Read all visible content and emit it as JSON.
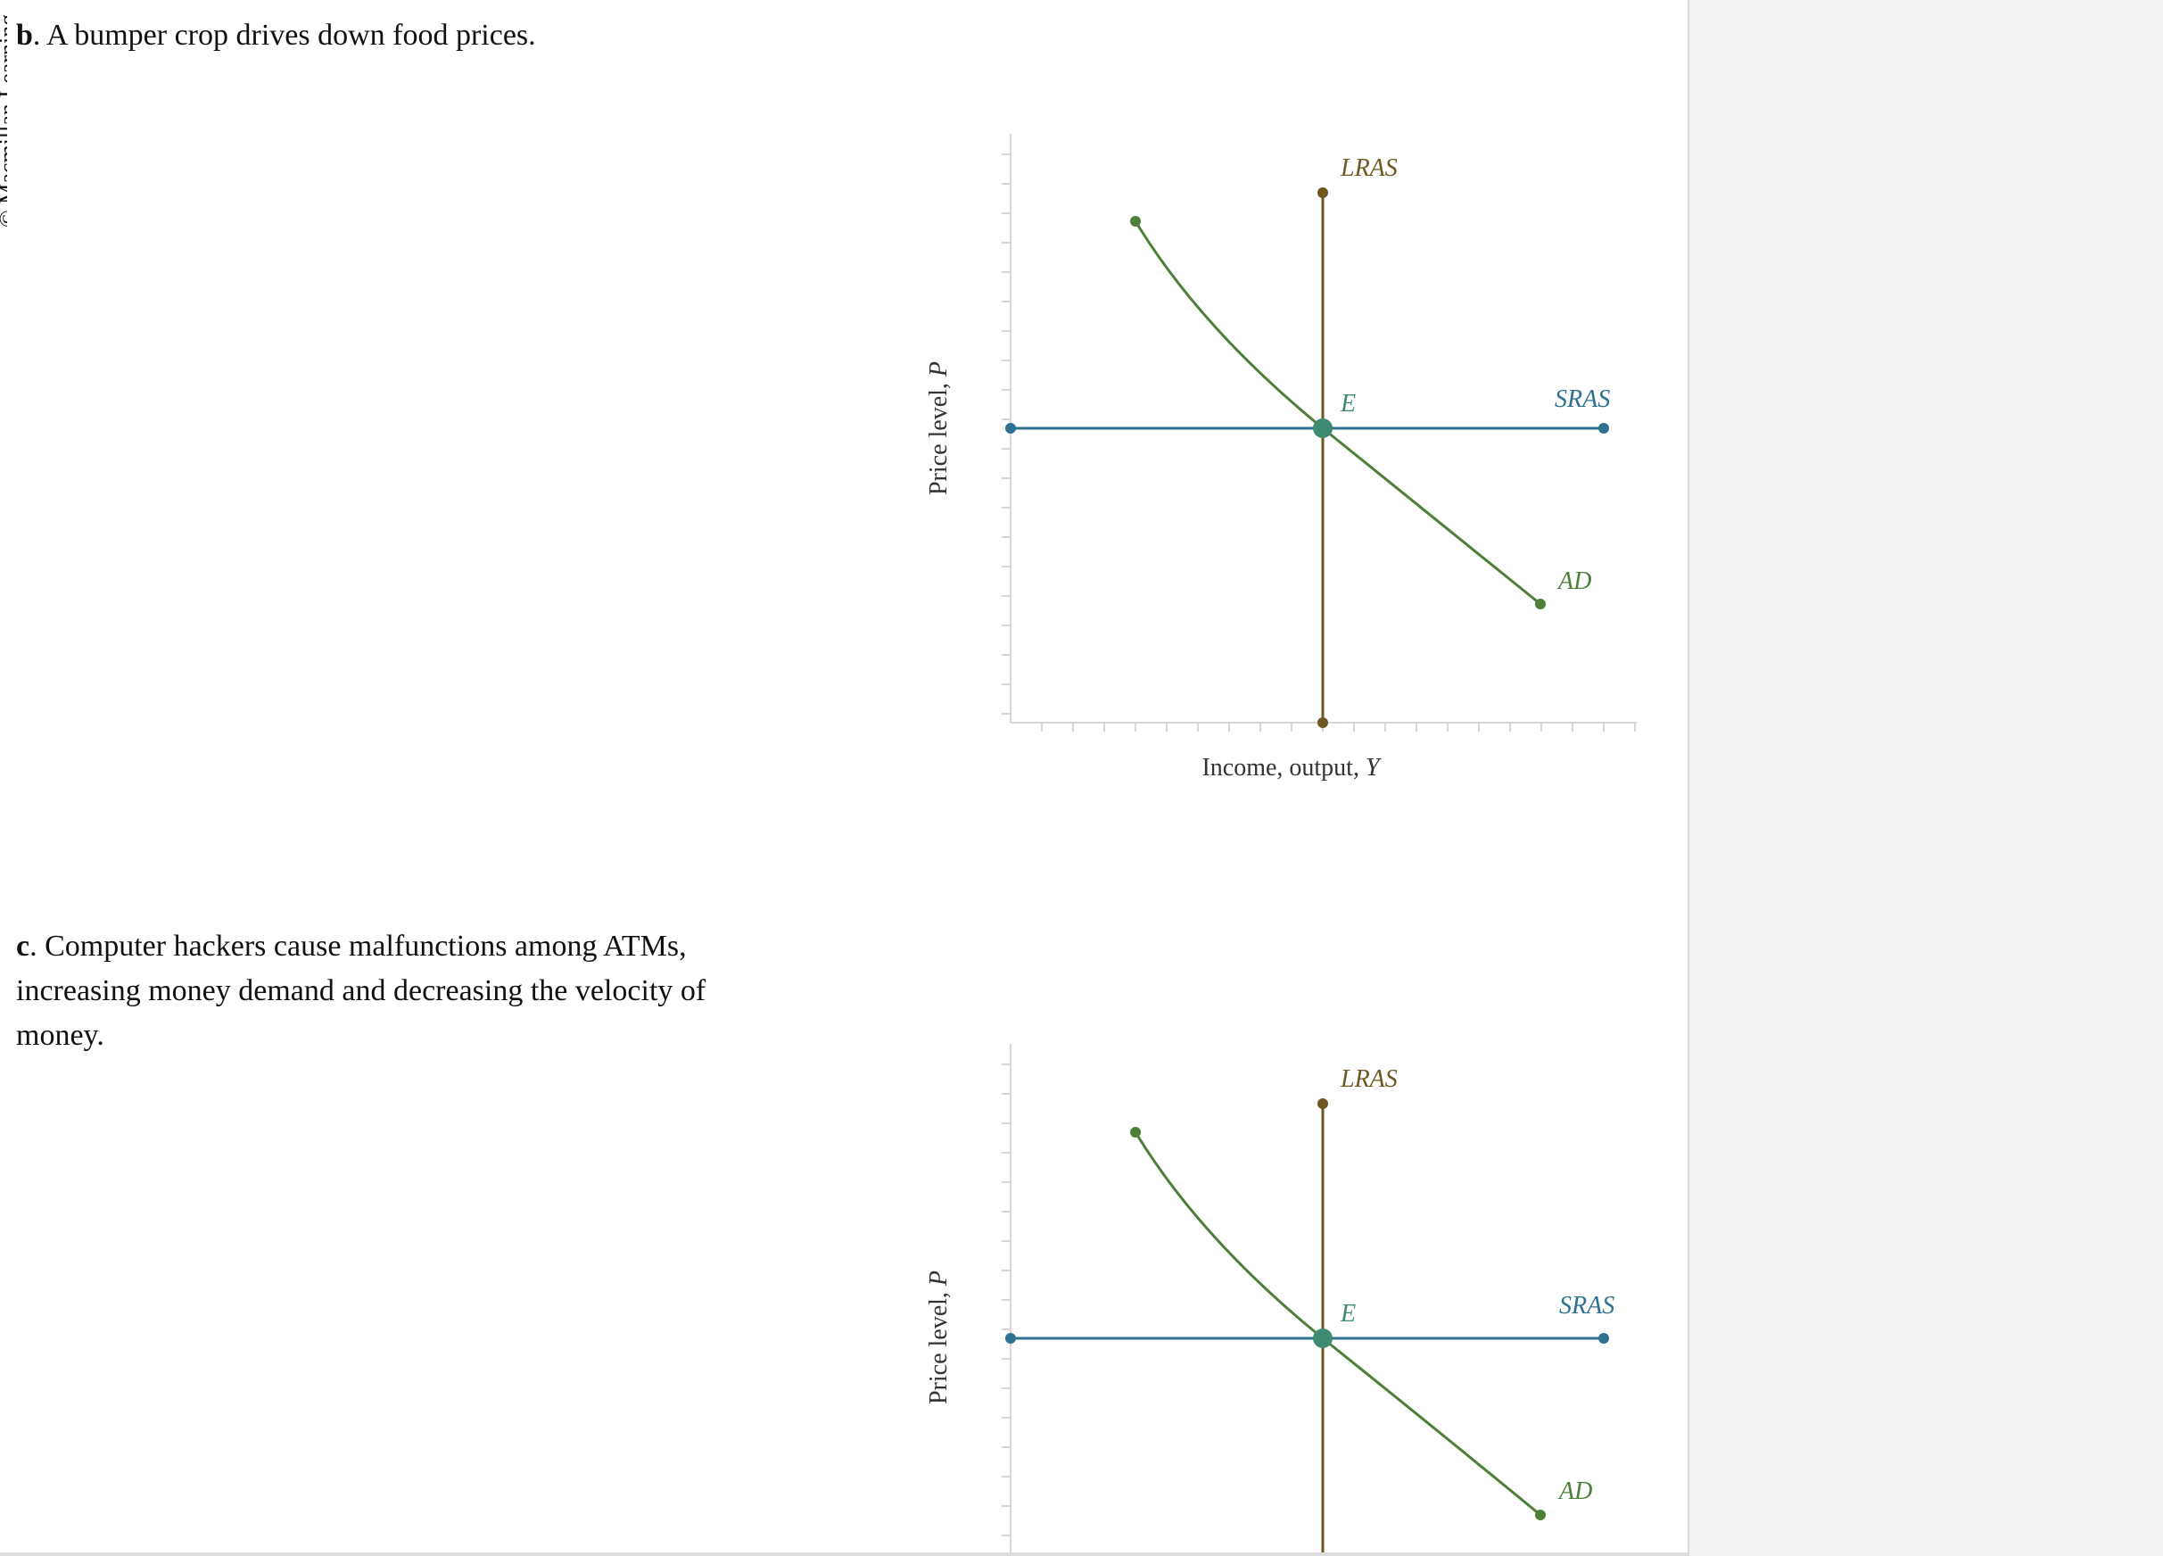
{
  "copyright": "© Macmillan Learning",
  "questions": [
    {
      "letter": "b",
      "text": ". A bumper crop drives down food prices.",
      "graph": {
        "y_axis_label": "Price level, ",
        "y_axis_var": "P",
        "x_axis_label": "Income, output, ",
        "x_axis_var": "Y",
        "curves": {
          "lras": "LRAS",
          "sras": "SRAS",
          "ad": "AD",
          "equilibrium": "E"
        }
      }
    },
    {
      "letter": "c",
      "text": ". Computer hackers cause malfunctions among ATMs, increasing money demand and decreasing the velocity of money.",
      "graph": {
        "y_axis_label": "Price level, ",
        "y_axis_var": "P",
        "curves": {
          "lras": "LRAS",
          "sras": "SRAS",
          "ad": "AD",
          "equilibrium": "E"
        }
      }
    }
  ],
  "colors": {
    "lras": "#6e5820",
    "sras": "#2f7190",
    "ad": "#4e7f39",
    "equilibrium": "#3e8a72",
    "axis": "#d6d6d6"
  }
}
